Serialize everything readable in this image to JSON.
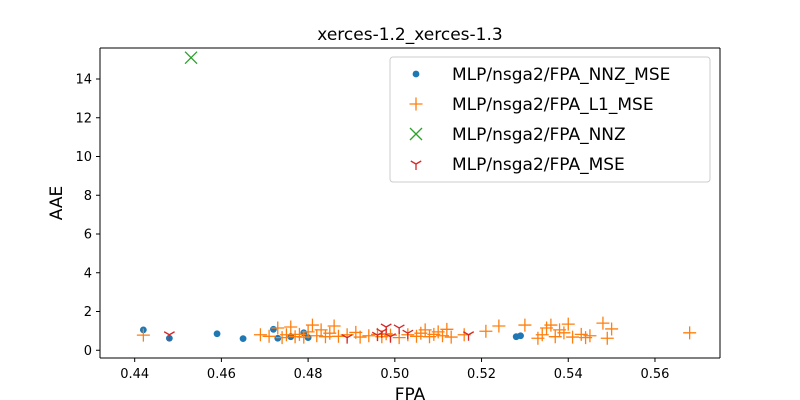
{
  "chart_data": {
    "type": "scatter",
    "title": "xerces-1.2_xerces-1.3",
    "xlabel": "FPA",
    "ylabel": "AAE",
    "xlim": [
      0.432,
      0.575
    ],
    "ylim": [
      -0.4,
      15.6
    ],
    "xticks": [
      0.44,
      0.46,
      0.48,
      0.5,
      0.52,
      0.54,
      0.56
    ],
    "xtick_labels": [
      "0.44",
      "0.46",
      "0.48",
      "0.50",
      "0.52",
      "0.54",
      "0.56"
    ],
    "yticks": [
      0,
      2,
      4,
      6,
      8,
      10,
      12,
      14
    ],
    "ytick_labels": [
      "0",
      "2",
      "4",
      "6",
      "8",
      "10",
      "12",
      "14"
    ],
    "grid": false,
    "legend_position": "top-right",
    "series": [
      {
        "name": "MLP/nsga2/FPA_NNZ_MSE",
        "marker": "circle",
        "color": "#1f77b4",
        "points": [
          [
            0.442,
            1.05
          ],
          [
            0.448,
            0.62
          ],
          [
            0.459,
            0.85
          ],
          [
            0.465,
            0.6
          ],
          [
            0.472,
            1.08
          ],
          [
            0.473,
            0.62
          ],
          [
            0.476,
            0.7
          ],
          [
            0.479,
            0.9
          ],
          [
            0.48,
            0.65
          ],
          [
            0.528,
            0.7
          ],
          [
            0.529,
            0.75
          ]
        ]
      },
      {
        "name": "MLP/nsga2/FPA_L1_MSE",
        "marker": "plus",
        "color": "#ff7f0e",
        "points": [
          [
            0.442,
            0.78
          ],
          [
            0.469,
            0.8
          ],
          [
            0.471,
            0.72
          ],
          [
            0.473,
            1.15
          ],
          [
            0.474,
            0.65
          ],
          [
            0.475,
            0.8
          ],
          [
            0.476,
            1.2
          ],
          [
            0.477,
            0.7
          ],
          [
            0.478,
            0.82
          ],
          [
            0.479,
            0.68
          ],
          [
            0.48,
            0.95
          ],
          [
            0.481,
            1.3
          ],
          [
            0.482,
            0.75
          ],
          [
            0.483,
            1.05
          ],
          [
            0.484,
            0.7
          ],
          [
            0.485,
            0.88
          ],
          [
            0.486,
            1.25
          ],
          [
            0.487,
            0.72
          ],
          [
            0.489,
            0.8
          ],
          [
            0.491,
            0.92
          ],
          [
            0.492,
            0.68
          ],
          [
            0.494,
            0.75
          ],
          [
            0.496,
            0.82
          ],
          [
            0.497,
            0.7
          ],
          [
            0.498,
            0.85
          ],
          [
            0.499,
            0.78
          ],
          [
            0.501,
            0.65
          ],
          [
            0.503,
            0.8
          ],
          [
            0.505,
            0.72
          ],
          [
            0.506,
            0.88
          ],
          [
            0.507,
            1.05
          ],
          [
            0.508,
            0.7
          ],
          [
            0.509,
            0.82
          ],
          [
            0.51,
            0.95
          ],
          [
            0.511,
            0.75
          ],
          [
            0.512,
            1.08
          ],
          [
            0.513,
            0.68
          ],
          [
            0.516,
            0.8
          ],
          [
            0.521,
            0.98
          ],
          [
            0.524,
            1.25
          ],
          [
            0.53,
            1.3
          ],
          [
            0.533,
            0.62
          ],
          [
            0.534,
            0.8
          ],
          [
            0.535,
            1.15
          ],
          [
            0.536,
            1.3
          ],
          [
            0.537,
            0.7
          ],
          [
            0.538,
            1.05
          ],
          [
            0.539,
            0.9
          ],
          [
            0.54,
            1.35
          ],
          [
            0.541,
            0.68
          ],
          [
            0.543,
            0.82
          ],
          [
            0.544,
            0.65
          ],
          [
            0.545,
            0.75
          ],
          [
            0.548,
            1.4
          ],
          [
            0.549,
            0.62
          ],
          [
            0.55,
            1.1
          ],
          [
            0.568,
            0.9
          ]
        ]
      },
      {
        "name": "MLP/nsga2/FPA_NNZ",
        "marker": "x",
        "color": "#2ca02c",
        "points": [
          [
            0.453,
            15.1
          ]
        ]
      },
      {
        "name": "MLP/nsga2/FPA_MSE",
        "marker": "tri_down",
        "color": "#d62728",
        "points": [
          [
            0.448,
            0.8
          ],
          [
            0.489,
            0.65
          ],
          [
            0.496,
            0.78
          ],
          [
            0.497,
            0.95
          ],
          [
            0.498,
            1.2
          ],
          [
            0.499,
            0.7
          ],
          [
            0.501,
            1.15
          ],
          [
            0.503,
            0.88
          ],
          [
            0.517,
            0.8
          ]
        ]
      }
    ]
  }
}
